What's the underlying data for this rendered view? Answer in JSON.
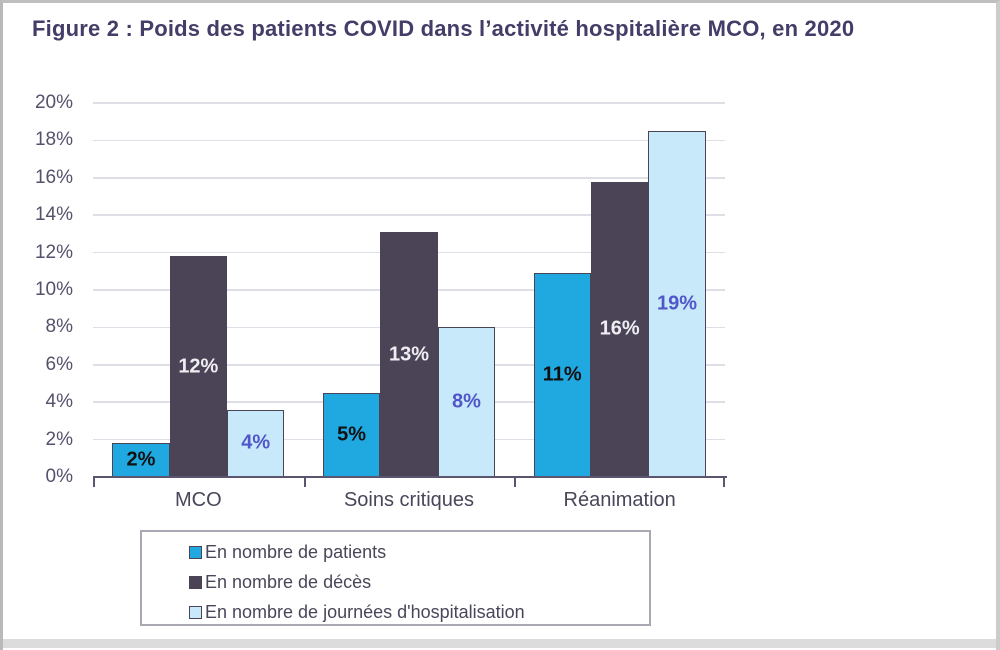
{
  "figure": {
    "title": "Figure 2 : Poids des patients COVID dans l’activité hospitalière MCO, en 2020"
  },
  "colors": {
    "title_text": "#433d68",
    "axis_line": "#5b5570",
    "gridline": "#dedee6",
    "tick_label": "#55506b",
    "category_label": "#4a4659",
    "legend_text": "#4a4659",
    "legend_border": "#a8a8b2",
    "bar_border": "#4b4457",
    "series_patients": "#20a8e0",
    "series_deces": "#4b4457",
    "series_journees": "#c8e9fa",
    "label_on_patients": "#111111",
    "label_on_deces": "#ededf2",
    "label_on_journees": "#5156c8",
    "frame_border": "#bfbfbf",
    "bottom_band": "#dcdcdc"
  },
  "chart_data": {
    "type": "bar",
    "title": "Figure 2 : Poids des patients COVID dans l’activité hospitalière MCO, en 2020",
    "categories": [
      "MCO",
      "Soins critiques",
      "Réanimation"
    ],
    "series": [
      {
        "name": "En nombre de patients",
        "values": [
          1.8,
          4.5,
          10.9
        ],
        "labels": [
          "2%",
          "5%",
          "11%"
        ],
        "color_key": "series_patients",
        "label_color_key": "label_on_patients"
      },
      {
        "name": "En nombre de décès",
        "values": [
          11.8,
          13.1,
          15.8
        ],
        "labels": [
          "12%",
          "13%",
          "16%"
        ],
        "color_key": "series_deces",
        "label_color_key": "label_on_deces"
      },
      {
        "name": "En nombre de journées d'hospitalisation",
        "values": [
          3.6,
          8.0,
          18.5
        ],
        "labels": [
          "4%",
          "8%",
          "19%"
        ],
        "color_key": "series_journees",
        "label_color_key": "label_on_journees"
      }
    ],
    "xlabel": "",
    "ylabel": "",
    "ylim": [
      0,
      20
    ],
    "ytick_step": 2,
    "ytick_labels": [
      "0%",
      "2%",
      "4%",
      "6%",
      "8%",
      "10%",
      "12%",
      "14%",
      "16%",
      "18%",
      "20%"
    ],
    "grid": true,
    "legend_position": "bottom-left"
  },
  "legend": {
    "items": [
      {
        "label": "En nombre de patients",
        "swatch_key": "series_patients"
      },
      {
        "label": "En nombre de décès",
        "swatch_key": "series_deces"
      },
      {
        "label": "En nombre de journées d'hospitalisation",
        "swatch_key": "series_journees"
      }
    ]
  }
}
